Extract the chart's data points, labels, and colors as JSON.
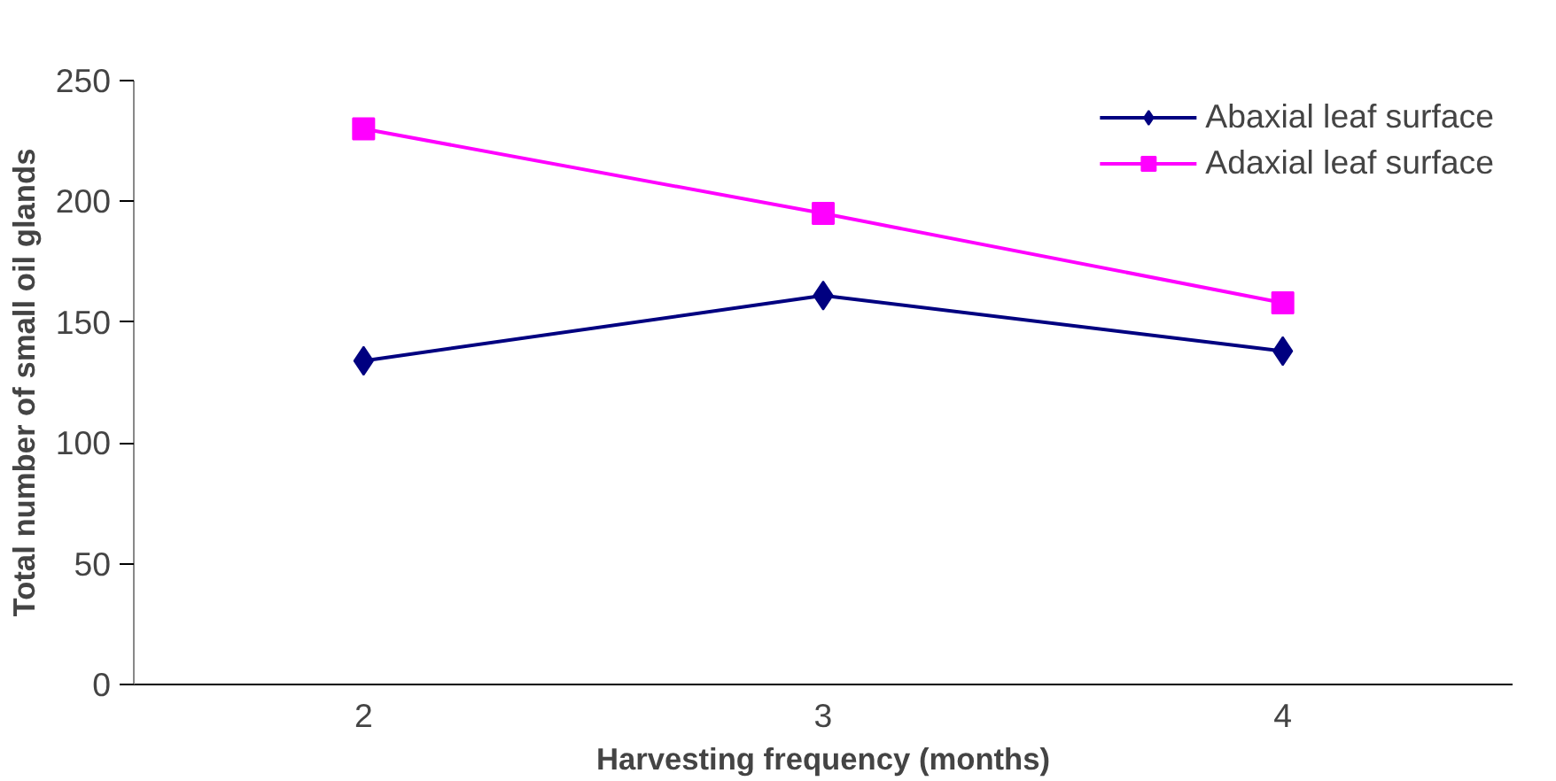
{
  "chart_data": {
    "type": "line",
    "xlabel": "Harvesting frequency (months)",
    "ylabel": "Total number of small oil glands",
    "categories": [
      "2",
      "3",
      "4"
    ],
    "ylim": [
      0,
      250
    ],
    "yticks": [
      0,
      50,
      100,
      150,
      200,
      250
    ],
    "grid": false,
    "legend": "top right",
    "series": [
      {
        "name": "Abaxial leaf surface",
        "color": "#000080",
        "marker": "diamond",
        "values": [
          134,
          161,
          138
        ]
      },
      {
        "name": "Adaxial leaf surface",
        "color": "#ff00ff",
        "marker": "square",
        "values": [
          230,
          195,
          158
        ]
      }
    ]
  }
}
